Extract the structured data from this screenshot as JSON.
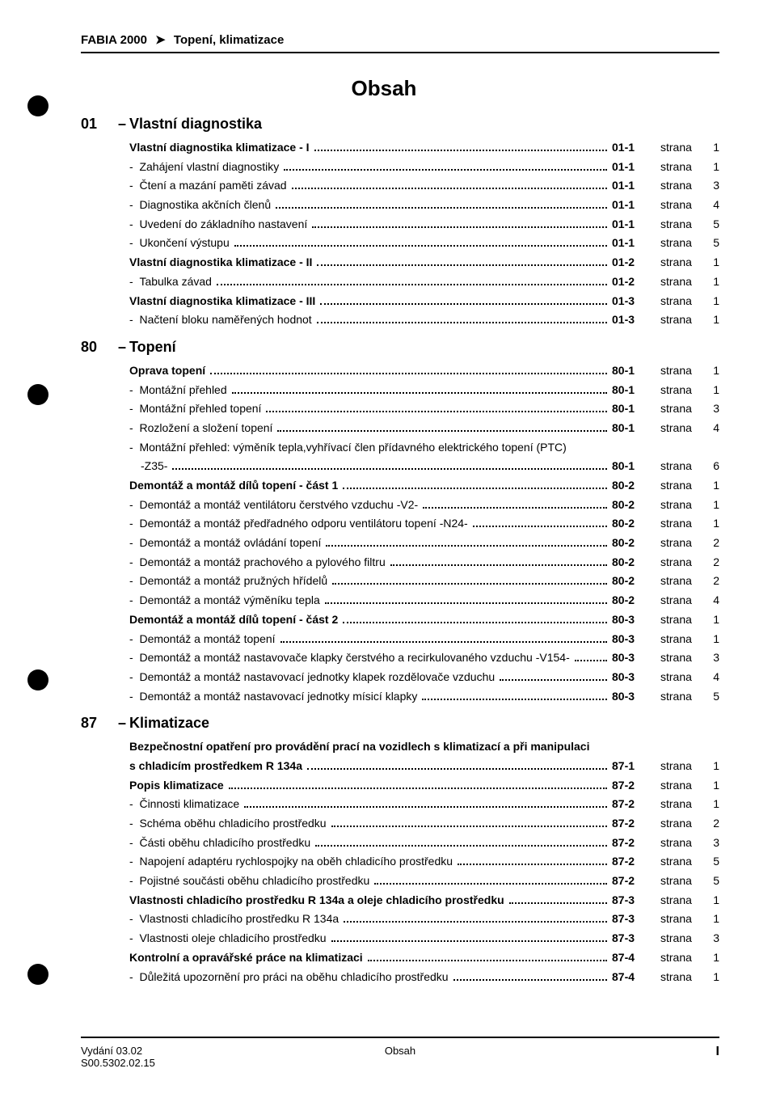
{
  "header": {
    "model": "FABIA 2000",
    "arrow": "➤",
    "subject": "Topení, klimatizace"
  },
  "title": "Obsah",
  "strana_label": "strana",
  "sections": [
    {
      "num": "01",
      "dash": "–",
      "title": "Vlastní diagnostika",
      "rows": [
        {
          "type": "bold",
          "label": "Vlastní diagnostika klimatizace - I",
          "code": "01-1",
          "page": "1"
        },
        {
          "type": "sub",
          "label": "Zahájení vlastní diagnostiky",
          "code": "01-1",
          "page": "1"
        },
        {
          "type": "sub",
          "label": "Čtení a mazání paměti závad",
          "code": "01-1",
          "page": "3"
        },
        {
          "type": "sub",
          "label": "Diagnostika akčních členů",
          "code": "01-1",
          "page": "4"
        },
        {
          "type": "sub",
          "label": "Uvedení do základního nastavení",
          "code": "01-1",
          "page": "5"
        },
        {
          "type": "sub",
          "label": "Ukončení výstupu",
          "code": "01-1",
          "page": "5"
        },
        {
          "type": "bold",
          "label": "Vlastní diagnostika klimatizace - II",
          "code": "01-2",
          "page": "1"
        },
        {
          "type": "sub",
          "label": "Tabulka závad",
          "code": "01-2",
          "page": "1"
        },
        {
          "type": "bold",
          "label": "Vlastní diagnostika klimatizace - III",
          "code": "01-3",
          "page": "1"
        },
        {
          "type": "sub",
          "label": "Načtení bloku naměřených hodnot",
          "code": "01-3",
          "page": "1"
        }
      ]
    },
    {
      "num": "80",
      "dash": "–",
      "title": "Topení",
      "rows": [
        {
          "type": "bold",
          "label": "Oprava topení",
          "code": "80-1",
          "page": "1"
        },
        {
          "type": "sub",
          "label": "Montážní přehled",
          "code": "80-1",
          "page": "1"
        },
        {
          "type": "sub",
          "label": "Montážní přehled topení",
          "code": "80-1",
          "page": "3"
        },
        {
          "type": "sub",
          "label": "Rozložení a složení topení",
          "code": "80-1",
          "page": "4"
        },
        {
          "type": "multi",
          "label": "Montážní přehled: výměník tepla,vyhřívací člen přídavného elektrického topení (PTC)",
          "cont": "-Z35-",
          "code": "80-1",
          "page": "6"
        },
        {
          "type": "bold",
          "label": "Demontáž a montáž dílů topení - část 1",
          "code": "80-2",
          "page": "1"
        },
        {
          "type": "sub",
          "label": "Demontáž a montáž ventilátoru čerstvého vzduchu -V2-",
          "code": "80-2",
          "page": "1"
        },
        {
          "type": "sub",
          "label": "Demontáž a montáž předřadného odporu ventilátoru topení -N24-",
          "code": "80-2",
          "page": "1"
        },
        {
          "type": "sub",
          "label": "Demontáž a montáž ovládání topení",
          "code": "80-2",
          "page": "2"
        },
        {
          "type": "sub",
          "label": "Demontáž a montáž prachového a pylového filtru",
          "code": "80-2",
          "page": "2"
        },
        {
          "type": "sub",
          "label": "Demontáž a montáž pružných hřídelů",
          "code": "80-2",
          "page": "2"
        },
        {
          "type": "sub",
          "label": "Demontáž a montáž výměníku tepla",
          "code": "80-2",
          "page": "4"
        },
        {
          "type": "bold",
          "label": "Demontáž a montáž dílů topení - část 2",
          "code": "80-3",
          "page": "1"
        },
        {
          "type": "sub",
          "label": "Demontáž a montáž topení",
          "code": "80-3",
          "page": "1"
        },
        {
          "type": "sub",
          "label": "Demontáž a montáž nastavovače klapky čerstvého a recirkulovaného vzduchu -V154-",
          "code": "80-3",
          "page": "3"
        },
        {
          "type": "sub",
          "label": "Demontáž a montáž nastavovací jednotky klapek rozdělovače vzduchu",
          "code": "80-3",
          "page": "4"
        },
        {
          "type": "sub",
          "label": "Demontáž a montáž nastavovací jednotky mísicí klapky",
          "code": "80-3",
          "page": "5"
        }
      ]
    },
    {
      "num": "87",
      "dash": "–",
      "title": "Klimatizace",
      "rows": [
        {
          "type": "multi-bold",
          "label": "Bezpečnostní opatření pro provádění prací na vozidlech s klimatizací a při manipulaci",
          "cont": "s chladicím prostředkem R 134a",
          "code": "87-1",
          "page": "1"
        },
        {
          "type": "bold",
          "label": "Popis klimatizace",
          "code": "87-2",
          "page": "1"
        },
        {
          "type": "sub",
          "label": "Činnosti klimatizace",
          "code": "87-2",
          "page": "1"
        },
        {
          "type": "sub",
          "label": "Schéma oběhu chladicího prostředku",
          "code": "87-2",
          "page": "2"
        },
        {
          "type": "sub",
          "label": "Části oběhu chladicího prostředku",
          "code": "87-2",
          "page": "3"
        },
        {
          "type": "sub",
          "label": "Napojení adaptéru rychlospojky na oběh chladicího prostředku",
          "code": "87-2",
          "page": "5"
        },
        {
          "type": "sub",
          "label": "Pojistné součásti oběhu chladicího prostředku",
          "code": "87-2",
          "page": "5"
        },
        {
          "type": "bold",
          "label": "Vlastnosti chladicího prostředku R 134a a oleje chladicího prostředku",
          "code": "87-3",
          "page": "1"
        },
        {
          "type": "sub",
          "label": "Vlastnosti chladicího prostředku R 134a",
          "code": "87-3",
          "page": "1"
        },
        {
          "type": "sub",
          "label": "Vlastnosti oleje chladicího prostředku",
          "code": "87-3",
          "page": "3"
        },
        {
          "type": "bold",
          "label": "Kontrolní a opravářské práce na klimatizaci",
          "code": "87-4",
          "page": "1"
        },
        {
          "type": "sub",
          "label": "Důležitá upozornění pro práci na oběhu chladicího prostředku",
          "code": "87-4",
          "page": "1"
        }
      ]
    }
  ],
  "punches": [
    118,
    475,
    828,
    1192
  ],
  "footer": {
    "left1": "Vydání 03.02",
    "left2": "S00.5302.02.15",
    "center": "Obsah",
    "right": "I"
  }
}
